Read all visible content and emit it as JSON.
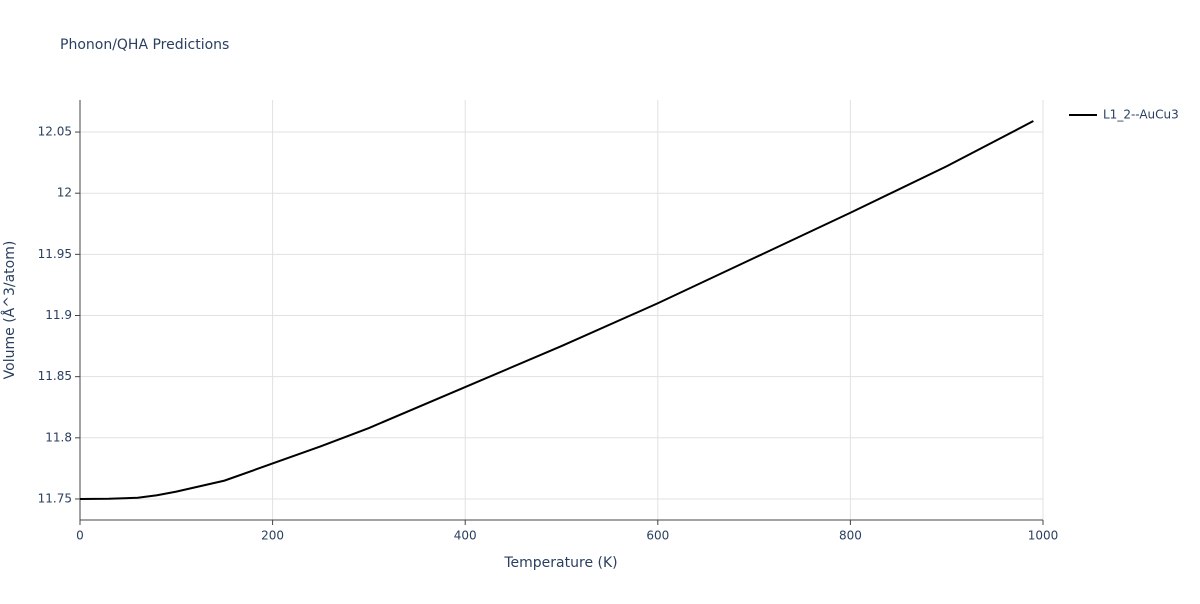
{
  "chart_data": {
    "type": "line",
    "title": "Phonon/QHA Predictions",
    "x_label": "Temperature (K)",
    "y_label": "Volume (Å^3/atom)",
    "x": [
      0,
      30,
      60,
      80,
      100,
      150,
      200,
      250,
      300,
      400,
      500,
      600,
      700,
      800,
      900,
      990
    ],
    "series": [
      {
        "name": "L1_2--AuCu3",
        "color": "#000000",
        "values": [
          11.75,
          11.7502,
          11.751,
          11.753,
          11.756,
          11.765,
          11.779,
          11.793,
          11.808,
          11.8415,
          11.875,
          11.91,
          11.947,
          11.984,
          12.022,
          12.059
        ]
      }
    ],
    "xlim": [
      0,
      1000
    ],
    "xticks": [
      0,
      200,
      400,
      600,
      800,
      1000
    ],
    "ylim": [
      11.7328,
      12.0762
    ],
    "yticks": [
      11.75,
      11.8,
      11.85,
      11.9,
      11.95,
      12,
      12.05
    ],
    "grid": true,
    "legend": "right"
  }
}
